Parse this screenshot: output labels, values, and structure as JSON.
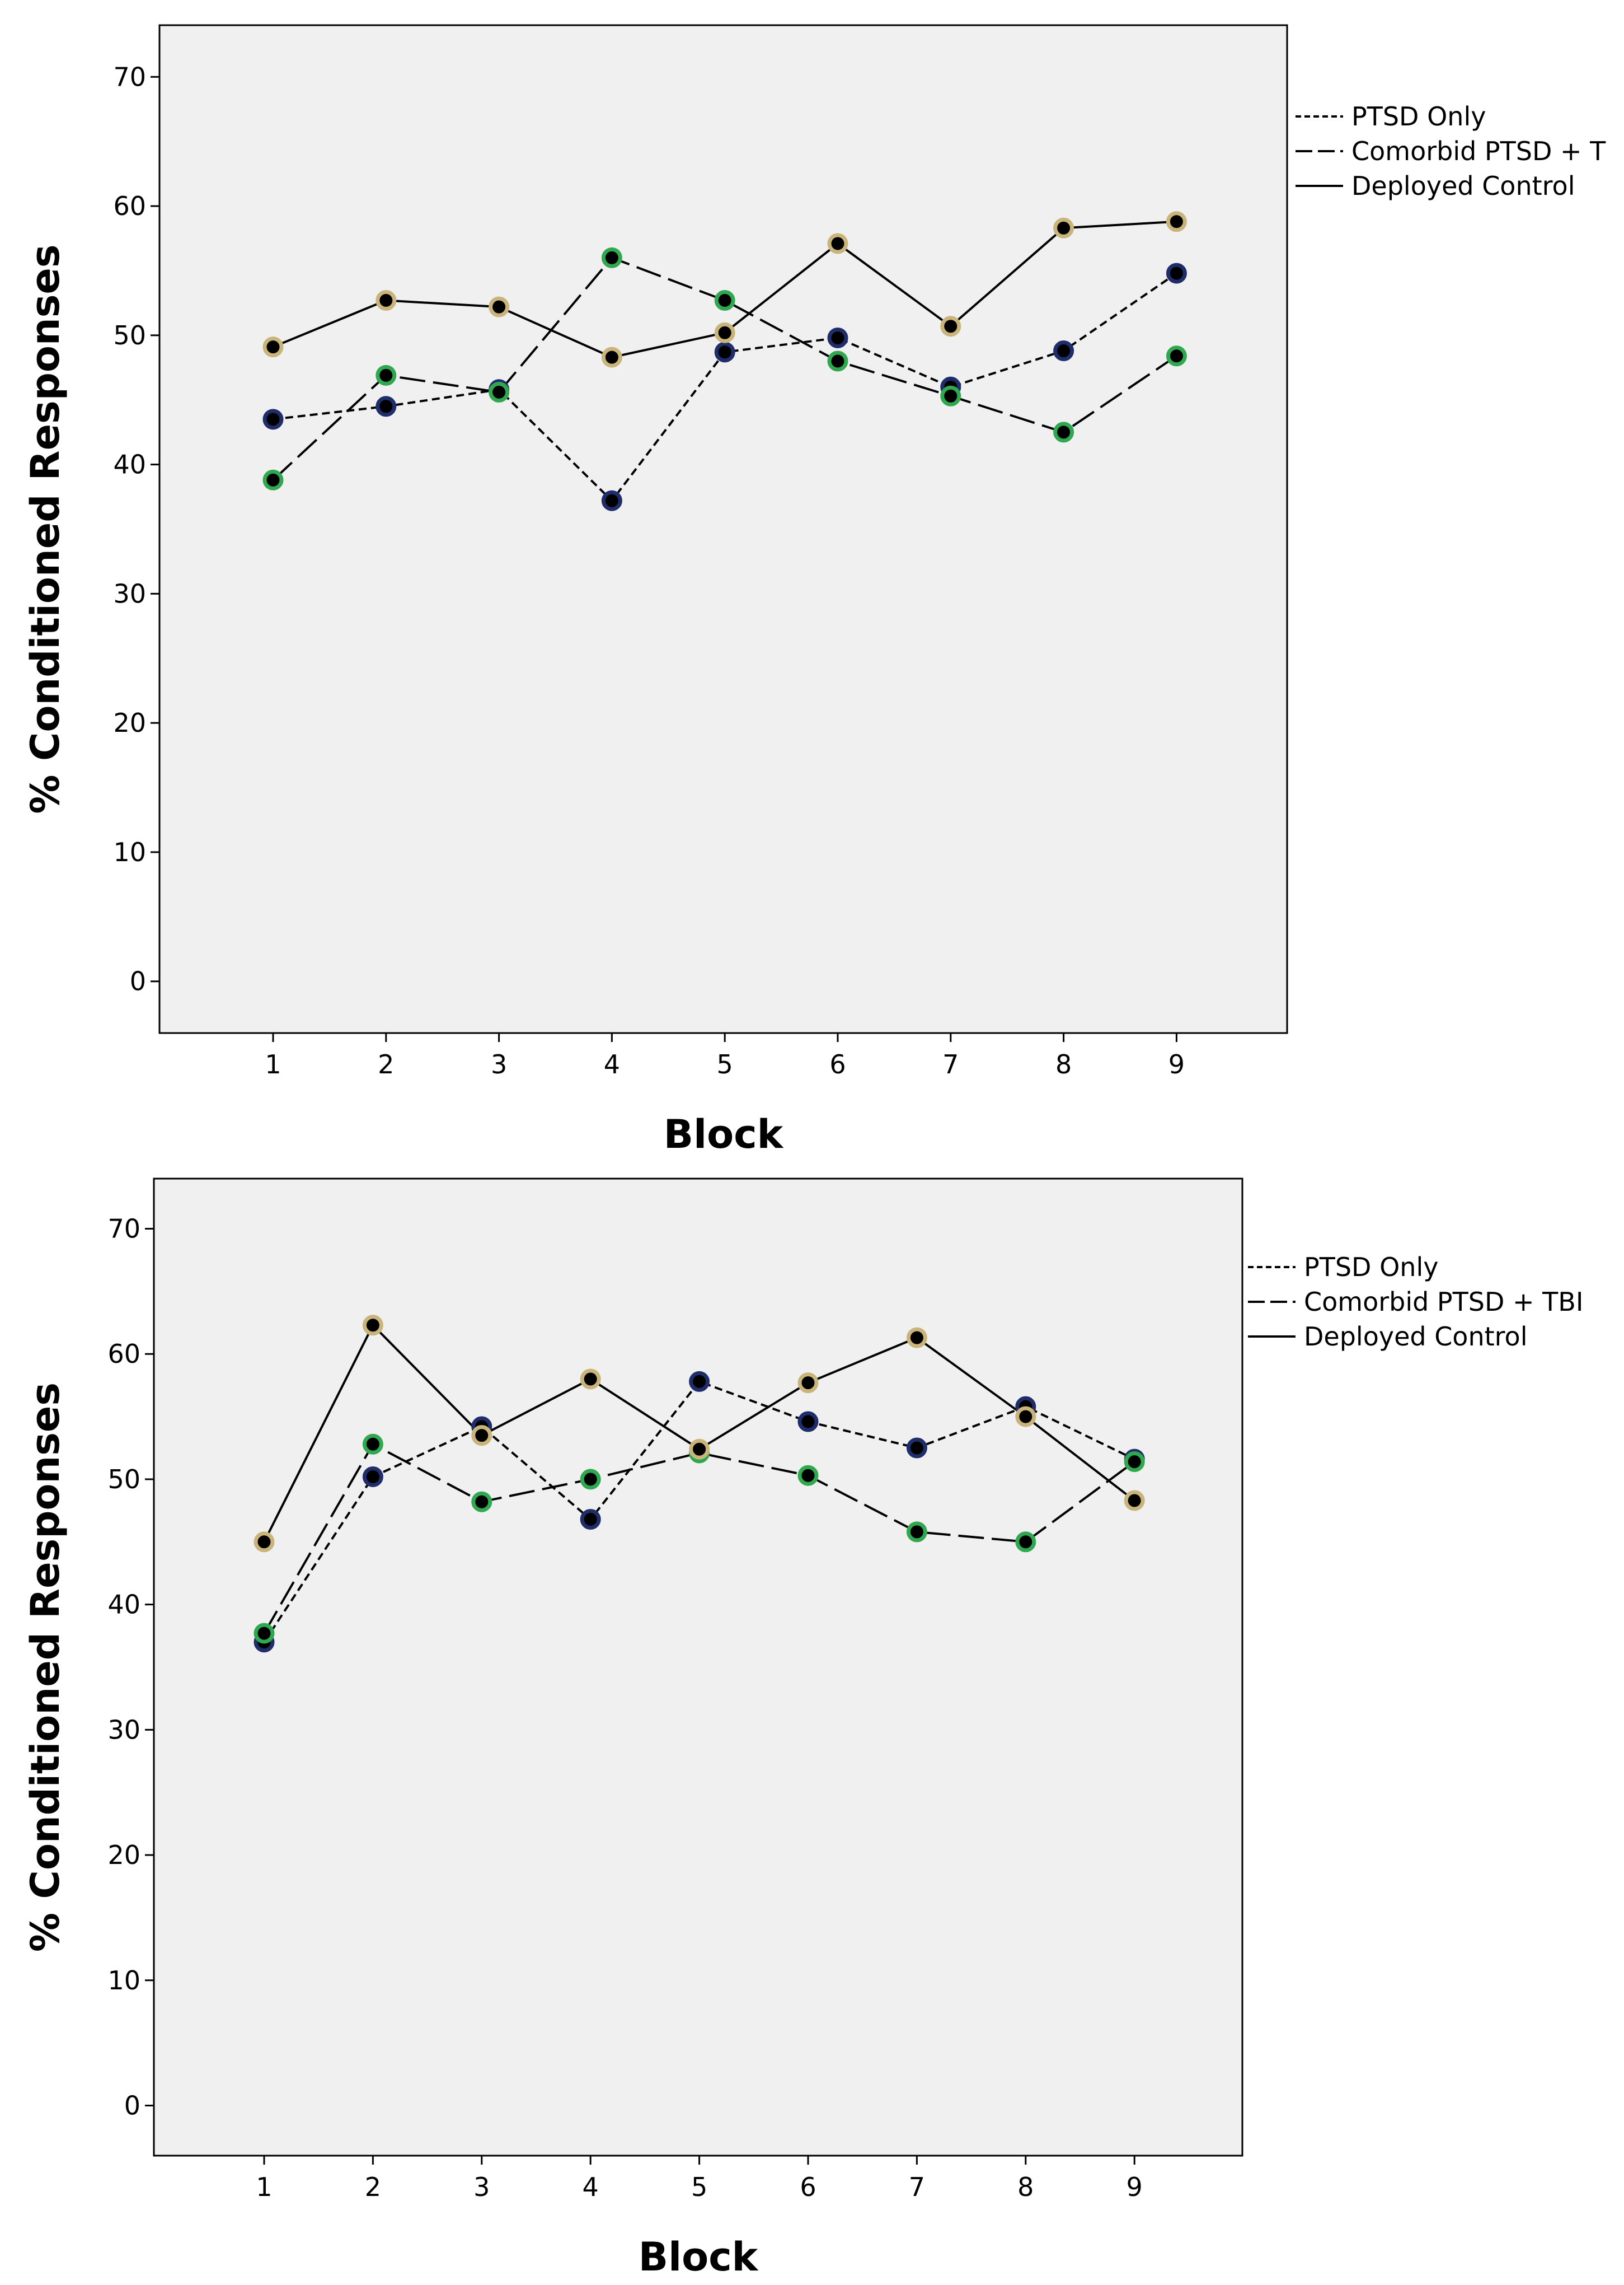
{
  "chart_data": [
    {
      "type": "line",
      "title": "",
      "xlabel": "Block",
      "ylabel": "% Conditioned Responses",
      "categories": [
        "1",
        "2",
        "3",
        "4",
        "5",
        "6",
        "7",
        "8",
        "9"
      ],
      "ylim": [
        -4,
        74
      ],
      "yticks": [
        "0",
        "10",
        "20",
        "30",
        "40",
        "50",
        "60",
        "70"
      ],
      "legend_position": "right, outside plot area",
      "series": [
        {
          "name": "PTSD Only",
          "style": "short-dash",
          "marker_color": "#1f2d6b",
          "values": [
            43.5,
            44.5,
            45.8,
            37.2,
            48.7,
            49.8,
            46.0,
            48.8,
            54.8
          ]
        },
        {
          "name": "Comorbid PTSD + T",
          "style": "long-dash",
          "marker_color": "#2fa84f",
          "values": [
            38.8,
            46.9,
            45.6,
            56.0,
            52.7,
            48.0,
            45.3,
            42.5,
            48.4
          ]
        },
        {
          "name": "Deployed Control",
          "style": "solid",
          "marker_color": "#c9b47a",
          "values": [
            49.1,
            52.7,
            52.2,
            48.3,
            50.2,
            57.1,
            50.7,
            58.3,
            58.8
          ]
        }
      ]
    },
    {
      "type": "line",
      "title": "",
      "xlabel": "Block",
      "ylabel": "% Conditioned Responses",
      "categories": [
        "1",
        "2",
        "3",
        "4",
        "5",
        "6",
        "7",
        "8",
        "9"
      ],
      "ylim": [
        -4,
        74
      ],
      "yticks": [
        "0",
        "10",
        "20",
        "30",
        "40",
        "50",
        "60",
        "70"
      ],
      "legend_position": "right, outside plot area",
      "series": [
        {
          "name": "PTSD Only",
          "style": "short-dash",
          "marker_color": "#1f2d6b",
          "values": [
            37.0,
            50.2,
            54.2,
            46.8,
            57.8,
            54.6,
            52.5,
            55.8,
            51.6
          ]
        },
        {
          "name": "Comorbid PTSD + TBI",
          "style": "long-dash",
          "marker_color": "#2fa84f",
          "values": [
            37.7,
            52.8,
            48.2,
            50.0,
            52.1,
            50.3,
            45.8,
            45.0,
            51.4
          ]
        },
        {
          "name": "Deployed Control",
          "style": "solid",
          "marker_color": "#c9b47a",
          "values": [
            45.0,
            62.3,
            53.5,
            58.0,
            52.4,
            57.7,
            61.3,
            55.0,
            48.3
          ]
        }
      ]
    }
  ]
}
